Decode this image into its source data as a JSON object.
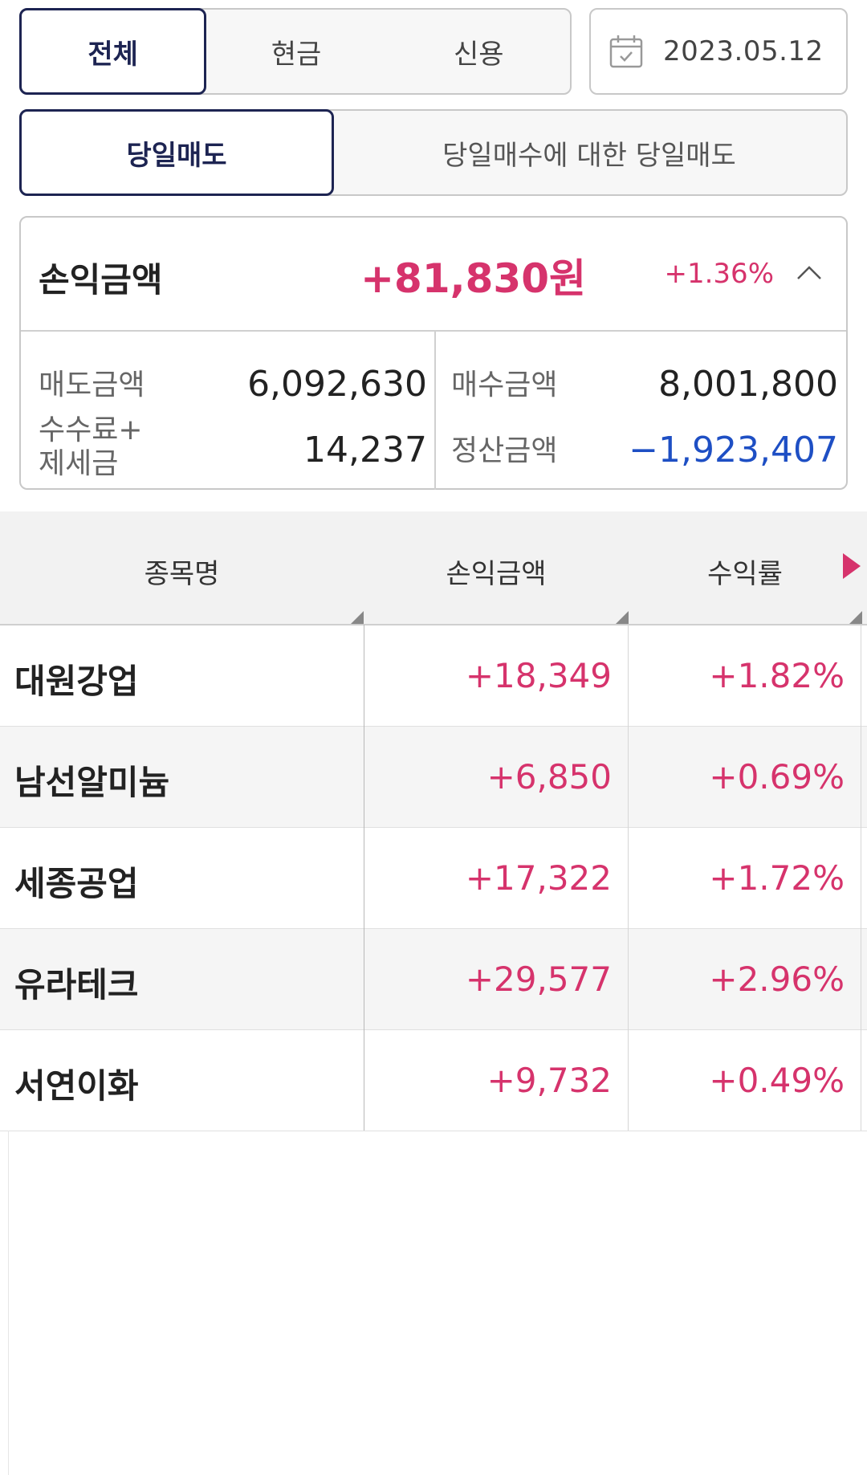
{
  "filters": {
    "account_type": [
      "전체",
      "현금",
      "신용"
    ],
    "date": "2023.05.12",
    "trade_mode": [
      "당일매도",
      "당일매수에 대한 당일매도"
    ]
  },
  "summary": {
    "title": "손익금액",
    "profit_amount": "+81,830원",
    "profit_rate": "+1.36%",
    "sell_label": "매도금액",
    "sell_value": "6,092,630",
    "buy_label": "매수금액",
    "buy_value": "8,001,800",
    "fee_label_line1": "수수료+",
    "fee_label_line2": "제세금",
    "fee_value": "14,237",
    "settle_label": "정산금액",
    "settle_value": "−1,923,407"
  },
  "table": {
    "headers": [
      "종목명",
      "손익금액",
      "수익률"
    ],
    "rows": [
      {
        "name": "대원강업",
        "profit": "+18,349",
        "rate": "+1.82%"
      },
      {
        "name": "남선알미늄",
        "profit": "+6,850",
        "rate": "+0.69%"
      },
      {
        "name": "세종공업",
        "profit": "+17,322",
        "rate": "+1.72%"
      },
      {
        "name": "유라테크",
        "profit": "+29,577",
        "rate": "+2.96%"
      },
      {
        "name": "서연이화",
        "profit": "+9,732",
        "rate": "+0.49%"
      }
    ]
  },
  "colors": {
    "accent_navy": "#1d2452",
    "profit_red": "#d6336c",
    "loss_blue": "#1e4fc4"
  },
  "icons": [
    "calendar-icon",
    "chevron-up-icon",
    "scroll-right-arrow-icon"
  ]
}
